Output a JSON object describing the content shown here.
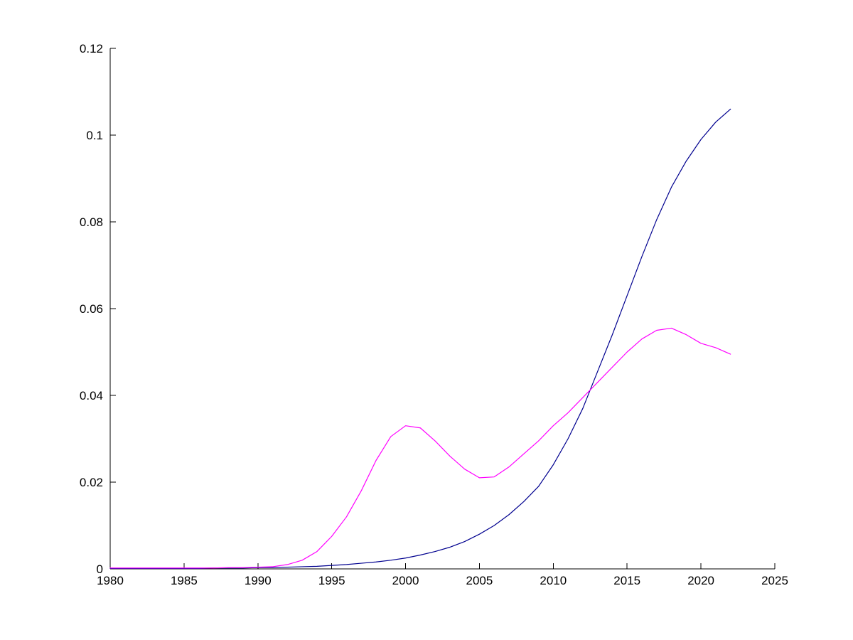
{
  "figure": {
    "background": "#ffffff",
    "axis_color": "#000000"
  },
  "chart_data": {
    "type": "line",
    "title": "",
    "xlabel": "",
    "ylabel": "",
    "grid": false,
    "legend": null,
    "xlim": [
      1980,
      2025
    ],
    "ylim": [
      0,
      0.12
    ],
    "xticks": [
      1980,
      1985,
      1990,
      1995,
      2000,
      2005,
      2010,
      2015,
      2020,
      2025
    ],
    "xtick_labels": [
      "1980",
      "1985",
      "1990",
      "1995",
      "2000",
      "2005",
      "2010",
      "2015",
      "2020",
      "2025"
    ],
    "yticks": [
      0,
      0.02,
      0.04,
      0.06,
      0.08,
      0.1,
      0.12
    ],
    "ytick_labels": [
      "0",
      "0.02",
      "0.04",
      "0.06",
      "0.08",
      "0.1",
      "0.12"
    ],
    "x": [
      1980,
      1981,
      1982,
      1983,
      1984,
      1985,
      1986,
      1987,
      1988,
      1989,
      1990,
      1991,
      1992,
      1993,
      1994,
      1995,
      1996,
      1997,
      1998,
      1999,
      2000,
      2001,
      2002,
      2003,
      2004,
      2005,
      2006,
      2007,
      2008,
      2009,
      2010,
      2011,
      2012,
      2013,
      2014,
      2015,
      2016,
      2017,
      2018,
      2019,
      2020,
      2021,
      2022
    ],
    "series": [
      {
        "name": "dark-blue-series",
        "color": "#00008f",
        "values": [
          0.0001,
          0.0001,
          0.0001,
          0.0001,
          0.0001,
          0.0001,
          0.0001,
          0.0002,
          0.0002,
          0.0002,
          0.0003,
          0.0003,
          0.0004,
          0.0005,
          0.0006,
          0.0008,
          0.001,
          0.0013,
          0.0016,
          0.002,
          0.0025,
          0.0032,
          0.004,
          0.005,
          0.0063,
          0.008,
          0.01,
          0.0125,
          0.0155,
          0.019,
          0.024,
          0.03,
          0.037,
          0.0455,
          0.054,
          0.063,
          0.072,
          0.0805,
          0.088,
          0.094,
          0.099,
          0.103,
          0.106
        ]
      },
      {
        "name": "magenta-series",
        "color": "#ff00ff",
        "values": [
          0.0002,
          0.0002,
          0.0002,
          0.0002,
          0.0002,
          0.0002,
          0.0002,
          0.0002,
          0.0003,
          0.0003,
          0.0004,
          0.0005,
          0.001,
          0.002,
          0.004,
          0.0075,
          0.012,
          0.018,
          0.025,
          0.0305,
          0.033,
          0.0325,
          0.0295,
          0.026,
          0.023,
          0.021,
          0.0212,
          0.0235,
          0.0265,
          0.0295,
          0.033,
          0.036,
          0.0395,
          0.043,
          0.0465,
          0.05,
          0.053,
          0.055,
          0.0555,
          0.054,
          0.052,
          0.051,
          0.0495
        ]
      }
    ]
  }
}
